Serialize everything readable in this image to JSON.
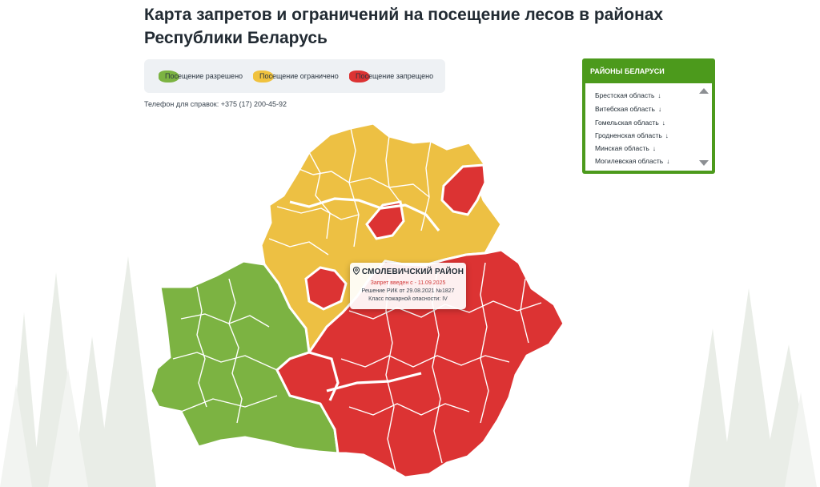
{
  "page": {
    "title": "Карта запретов и ограничений на посещение лесов в районах Республики Беларусь",
    "phone": "Телефон для справок: +375 (17) 200-45-92"
  },
  "legend": {
    "items": [
      {
        "label": "Посещение разрешено",
        "color": "#7cb342"
      },
      {
        "label": "Посещение ограничено",
        "color": "#f0c23e"
      },
      {
        "label": "Посещение запрещено",
        "color": "#dc3333"
      }
    ]
  },
  "map": {
    "colors": {
      "allowed": "#7cb342",
      "restricted": "#edc043",
      "forbidden": "#dc3333",
      "border": "#ffffff"
    },
    "regions": [
      {
        "status": "restricted"
      },
      {
        "status": "allowed"
      },
      {
        "status": "forbidden"
      },
      {
        "status": "forbidden"
      },
      {
        "status": "forbidden"
      }
    ]
  },
  "tooltip": {
    "name": "СМОЛЕВИЧСКИЙ РАЙОН",
    "ban": "Запрет введен с - 11.09.2025",
    "decision": "Решение РИК от 29.08.2021 №1827",
    "fire_class": "Класс пожарной опасности: IV",
    "pin_icon": "location-pin-icon"
  },
  "panel": {
    "title": "РАЙОНЫ БЕЛАРУСИ",
    "regions": [
      {
        "label": "Брестская область",
        "arrow": "↓"
      },
      {
        "label": "Витебская область",
        "arrow": "↓"
      },
      {
        "label": "Гомельская область",
        "arrow": "↓"
      },
      {
        "label": "Гродненская область",
        "arrow": "↓"
      },
      {
        "label": "Минская область",
        "arrow": "↓"
      },
      {
        "label": "Могилевская область",
        "arrow": "↓"
      }
    ]
  }
}
